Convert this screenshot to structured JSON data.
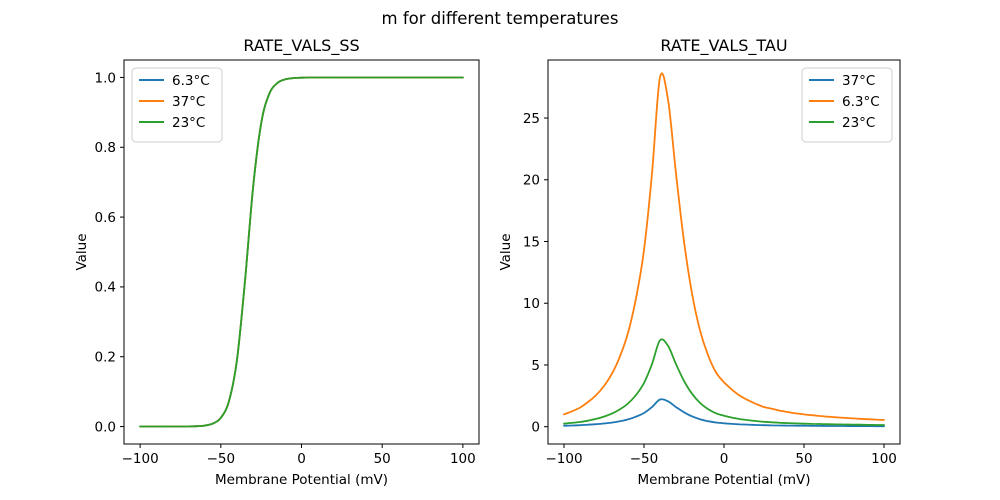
{
  "figure": {
    "suptitle": "m for different temperatures",
    "background_color": "#ffffff",
    "text_color": "#000000"
  },
  "chart_data": [
    {
      "type": "line",
      "title": "RATE_VALS_SS",
      "xlabel": "Membrane Potential (mV)",
      "ylabel": "Value",
      "grid": false,
      "xlim": [
        -110,
        110
      ],
      "ylim": [
        -0.05,
        1.05
      ],
      "xticks": [
        -100,
        -50,
        0,
        50,
        100
      ],
      "xtick_labels": [
        "−100",
        "−50",
        "0",
        "50",
        "100"
      ],
      "yticks": [
        0.0,
        0.2,
        0.4,
        0.6,
        0.8,
        1.0
      ],
      "ytick_labels": [
        "0.0",
        "0.2",
        "0.4",
        "0.6",
        "0.8",
        "1.0"
      ],
      "legend": {
        "position": "upper-left",
        "entries": [
          {
            "label": "6.3°C",
            "color": "#1f77b4"
          },
          {
            "label": "37°C",
            "color": "#ff7f0e"
          },
          {
            "label": "23°C",
            "color": "#2ca02c"
          }
        ]
      },
      "x": [
        -100,
        -95,
        -90,
        -85,
        -80,
        -75,
        -70,
        -65,
        -60,
        -55,
        -50,
        -45,
        -40,
        -35,
        -30,
        -25,
        -20,
        -15,
        -10,
        -5,
        0,
        5,
        10,
        15,
        20,
        25,
        30,
        35,
        40,
        45,
        50,
        55,
        60,
        65,
        70,
        75,
        80,
        85,
        90,
        95,
        100
      ],
      "series": [
        {
          "name": "6.3°C",
          "color": "#1f77b4",
          "values": [
            0,
            0,
            0,
            0,
            0.0001,
            0.0002,
            0.0003,
            0.0009,
            0.0028,
            0.0084,
            0.0249,
            0.0721,
            0.1908,
            0.4175,
            0.6853,
            0.8687,
            0.9526,
            0.9839,
            0.9946,
            0.9982,
            0.9994,
            0.9998,
            0.9999,
            1,
            1,
            1,
            1,
            1,
            1,
            1,
            1,
            1,
            1,
            1,
            1,
            1,
            1,
            1,
            1,
            1,
            1
          ]
        },
        {
          "name": "37°C",
          "color": "#ff7f0e",
          "values": [
            0,
            0,
            0,
            0,
            0.0001,
            0.0002,
            0.0003,
            0.0009,
            0.0028,
            0.0084,
            0.0249,
            0.0721,
            0.1908,
            0.4175,
            0.6853,
            0.8687,
            0.9526,
            0.9839,
            0.9946,
            0.9982,
            0.9994,
            0.9998,
            0.9999,
            1,
            1,
            1,
            1,
            1,
            1,
            1,
            1,
            1,
            1,
            1,
            1,
            1,
            1,
            1,
            1,
            1,
            1
          ]
        },
        {
          "name": "23°C",
          "color": "#2ca02c",
          "values": [
            0,
            0,
            0,
            0,
            0.0001,
            0.0002,
            0.0003,
            0.0009,
            0.0028,
            0.0084,
            0.0249,
            0.0721,
            0.1908,
            0.4175,
            0.6853,
            0.8687,
            0.9526,
            0.9839,
            0.9946,
            0.9982,
            0.9994,
            0.9998,
            0.9999,
            1,
            1,
            1,
            1,
            1,
            1,
            1,
            1,
            1,
            1,
            1,
            1,
            1,
            1,
            1,
            1,
            1,
            1
          ]
        }
      ]
    },
    {
      "type": "line",
      "title": "RATE_VALS_TAU",
      "xlabel": "Membrane Potential (mV)",
      "ylabel": "Value",
      "grid": false,
      "xlim": [
        -110,
        110
      ],
      "ylim": [
        -1.4,
        29.7
      ],
      "xticks": [
        -100,
        -50,
        0,
        50,
        100
      ],
      "xtick_labels": [
        "−100",
        "−50",
        "0",
        "50",
        "100"
      ],
      "yticks": [
        0,
        5,
        10,
        15,
        20,
        25
      ],
      "ytick_labels": [
        "0",
        "5",
        "10",
        "15",
        "20",
        "25"
      ],
      "legend": {
        "position": "upper-right",
        "entries": [
          {
            "label": "37°C",
            "color": "#1f77b4"
          },
          {
            "label": "6.3°C",
            "color": "#ff7f0e"
          },
          {
            "label": "23°C",
            "color": "#2ca02c"
          }
        ]
      },
      "x": [
        -100,
        -95,
        -90,
        -85,
        -80,
        -75,
        -70,
        -65,
        -60,
        -55,
        -50,
        -45,
        -40,
        -35,
        -30,
        -25,
        -20,
        -15,
        -10,
        -5,
        0,
        5,
        10,
        15,
        20,
        25,
        30,
        35,
        40,
        45,
        50,
        55,
        60,
        65,
        70,
        75,
        80,
        85,
        90,
        95,
        100
      ],
      "series": [
        {
          "name": "37°C",
          "color": "#1f77b4",
          "values": [
            0.08,
            0.1,
            0.12,
            0.16,
            0.2,
            0.26,
            0.33,
            0.44,
            0.59,
            0.81,
            1.11,
            1.59,
            2.2,
            2.06,
            1.59,
            1.17,
            0.84,
            0.61,
            0.45,
            0.34,
            0.28,
            0.23,
            0.19,
            0.17,
            0.14,
            0.12,
            0.11,
            0.1,
            0.09,
            0.08,
            0.08,
            0.07,
            0.07,
            0.06,
            0.06,
            0.06,
            0.05,
            0.05,
            0.05,
            0.04,
            0.04
          ]
        },
        {
          "name": "6.3°C",
          "color": "#ff7f0e",
          "values": [
            1.0,
            1.25,
            1.55,
            2.0,
            2.55,
            3.3,
            4.3,
            5.7,
            7.6,
            10.4,
            14.3,
            20.5,
            28.3,
            26.5,
            20.5,
            15.0,
            10.8,
            7.8,
            5.8,
            4.4,
            3.6,
            3.0,
            2.5,
            2.15,
            1.85,
            1.6,
            1.45,
            1.3,
            1.18,
            1.08,
            1.0,
            0.93,
            0.87,
            0.81,
            0.76,
            0.72,
            0.68,
            0.64,
            0.61,
            0.58,
            0.55
          ]
        },
        {
          "name": "23°C",
          "color": "#2ca02c",
          "values": [
            0.25,
            0.31,
            0.38,
            0.49,
            0.63,
            0.82,
            1.06,
            1.41,
            1.88,
            2.57,
            3.54,
            5.07,
            7.0,
            6.55,
            5.07,
            3.71,
            2.67,
            1.93,
            1.43,
            1.09,
            0.89,
            0.74,
            0.62,
            0.53,
            0.46,
            0.4,
            0.36,
            0.32,
            0.29,
            0.27,
            0.25,
            0.23,
            0.22,
            0.2,
            0.19,
            0.18,
            0.17,
            0.16,
            0.15,
            0.14,
            0.14
          ]
        }
      ]
    }
  ]
}
